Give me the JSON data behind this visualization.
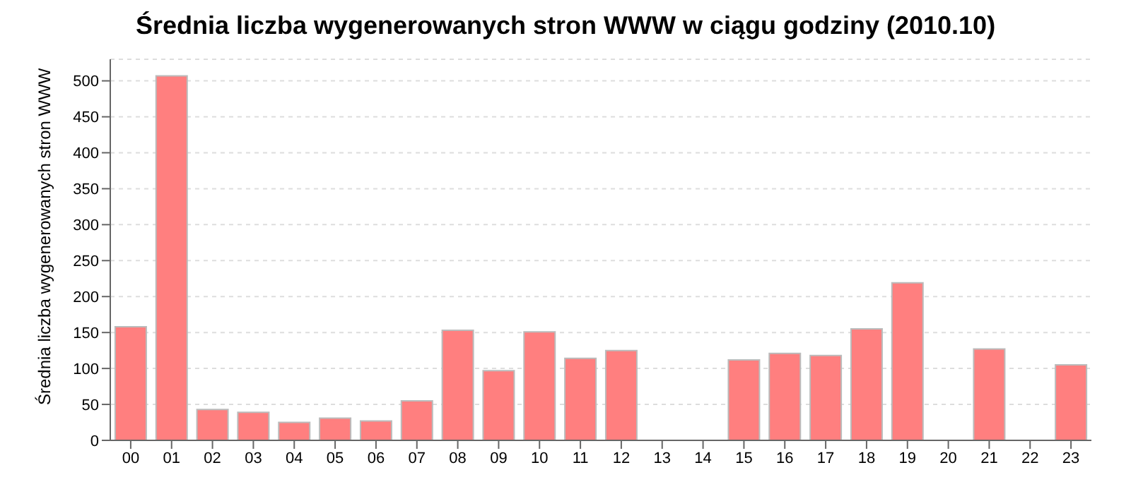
{
  "chart_data": {
    "type": "bar",
    "title": "Średnia liczba wygenerowanych stron WWW w ciągu godziny (2010.10)",
    "ylabel": "Średnia liczba wygenerowanych stron WWW",
    "categories": [
      "00",
      "01",
      "02",
      "03",
      "04",
      "05",
      "06",
      "07",
      "08",
      "09",
      "10",
      "11",
      "12",
      "13",
      "14",
      "15",
      "16",
      "17",
      "18",
      "19",
      "20",
      "21",
      "22",
      "23"
    ],
    "values": [
      158,
      507,
      43,
      39,
      25,
      31,
      27,
      55,
      153,
      97,
      151,
      114,
      125,
      0,
      0,
      112,
      121,
      118,
      155,
      219,
      0,
      127,
      0,
      105
    ],
    "color": "#ff7f7f",
    "ylim": [
      0,
      530
    ],
    "yticks": [
      0,
      50,
      100,
      150,
      200,
      250,
      300,
      350,
      400,
      450,
      500
    ],
    "grid": "y"
  }
}
